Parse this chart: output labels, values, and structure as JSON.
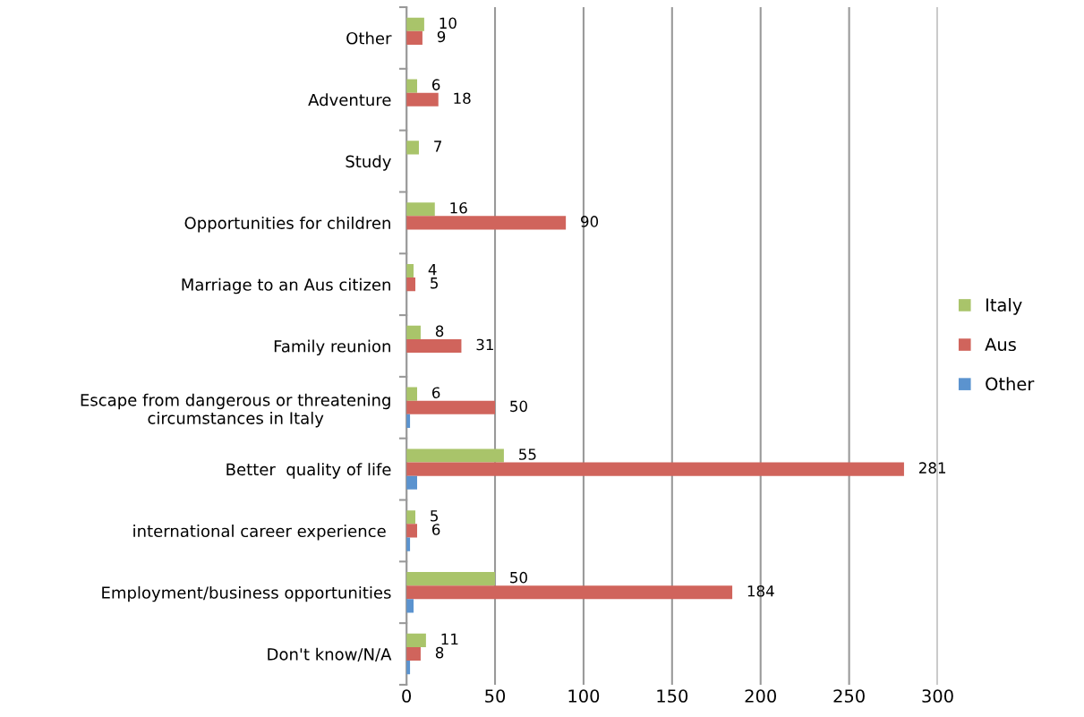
{
  "chart_data": {
    "type": "bar",
    "orientation": "horizontal",
    "categories": [
      "Other",
      "Adventure",
      "Study",
      "Opportunities for children",
      "Marriage to an Aus citizen",
      "Family reunion",
      "Escape from dangerous or threatening\ncircumstances in Italy",
      "Better  quality of life",
      "international career experience ",
      "Employment/business opportunities",
      "Don't know/N/A"
    ],
    "series": [
      {
        "name": "Italy",
        "color": "#a9c46a",
        "values": [
          10,
          6,
          7,
          16,
          4,
          8,
          6,
          55,
          5,
          50,
          11
        ],
        "value_labels": [
          "10",
          "6",
          "7",
          "16",
          "4",
          "8",
          "6",
          "55",
          "5",
          "50",
          "11"
        ]
      },
      {
        "name": "Aus",
        "color": "#d0645c",
        "values": [
          9,
          18,
          null,
          90,
          5,
          31,
          50,
          281,
          6,
          184,
          8
        ],
        "value_labels": [
          "9",
          "18",
          null,
          "90",
          "5",
          "31",
          "50",
          "281",
          "6",
          "184",
          "8"
        ]
      },
      {
        "name": "Other",
        "color": "#5b93cf",
        "values": [
          null,
          null,
          null,
          null,
          null,
          null,
          2,
          6,
          2,
          4,
          2
        ]
      }
    ],
    "xlim": [
      0,
      300
    ],
    "xticks": [
      0,
      50,
      100,
      150,
      200,
      250,
      300
    ],
    "grid": "x",
    "legend": "right"
  }
}
